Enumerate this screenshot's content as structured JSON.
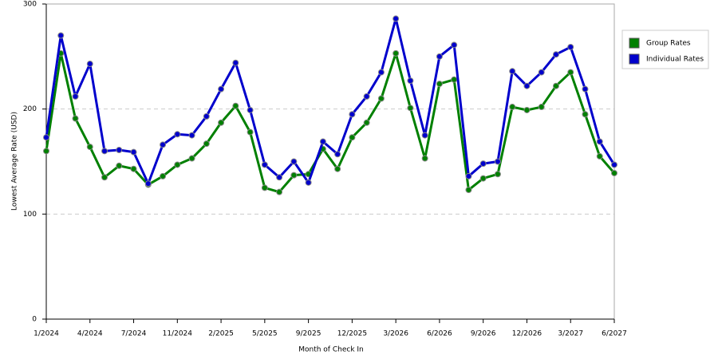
{
  "chart_data": {
    "type": "line",
    "x_label": "Month of Check In",
    "y_label": "Lowest Average Rate (USD)",
    "categories": [
      "1/2024",
      null,
      null,
      "4/2024",
      null,
      null,
      "7/2024",
      null,
      null,
      "11/2024",
      null,
      null,
      "2/2025",
      null,
      null,
      "5/2025",
      null,
      null,
      "9/2025",
      null,
      null,
      "12/2025",
      null,
      null,
      "3/2026",
      null,
      null,
      "6/2026",
      null,
      null,
      "9/2026",
      null,
      null,
      "12/2026",
      null,
      null,
      "3/2027",
      null,
      null,
      "6/2027"
    ],
    "series": [
      {
        "name": "Group Rates",
        "color": "#008000",
        "values": [
          160,
          253,
          191,
          164,
          135,
          146,
          143,
          128,
          136,
          147,
          153,
          167,
          187,
          203,
          178,
          125,
          121,
          137,
          138,
          162,
          143,
          173,
          187,
          210,
          253,
          201,
          153,
          224,
          228,
          123,
          134,
          138,
          202,
          199,
          202,
          222,
          235,
          195,
          155,
          139
        ]
      },
      {
        "name": "Individual Rates",
        "color": "#0000cc",
        "values": [
          173,
          270,
          212,
          243,
          160,
          161,
          159,
          129,
          166,
          176,
          175,
          193,
          219,
          244,
          199,
          147,
          135,
          150,
          130,
          169,
          157,
          195,
          212,
          235,
          286,
          227,
          175,
          250,
          261,
          136,
          148,
          150,
          236,
          222,
          235,
          252,
          259,
          219,
          169,
          147
        ]
      }
    ],
    "ylim": [
      0,
      300
    ],
    "yticks": [
      0,
      100,
      200,
      300
    ],
    "grid": true,
    "legend": "right"
  }
}
